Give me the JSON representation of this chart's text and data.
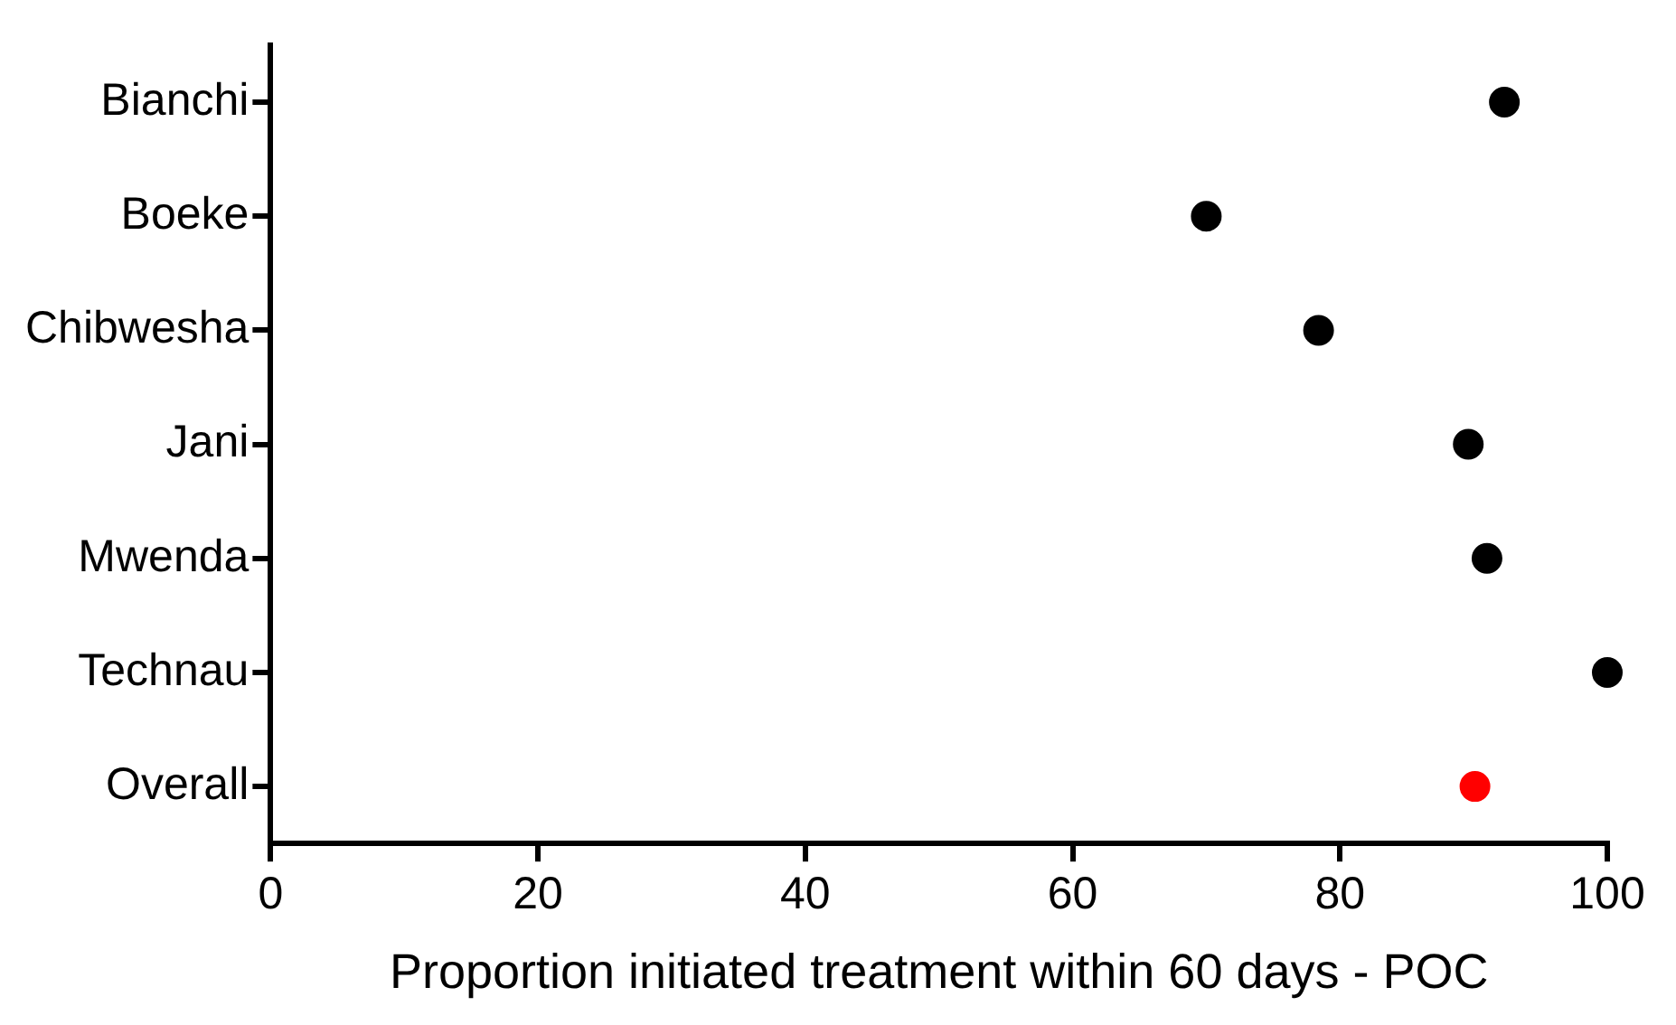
{
  "chart_data": {
    "type": "scatter",
    "orientation": "horizontal",
    "xlabel": "Proportion initiated treatment within 60 days - POC",
    "categories": [
      "Bianchi",
      "Boeke",
      "Chibwesha",
      "Jani",
      "Mwenda",
      "Technau",
      "Overall"
    ],
    "values": [
      92.3,
      70,
      78.4,
      89.6,
      91,
      100,
      90.1
    ],
    "colors": [
      "#000000",
      "#000000",
      "#000000",
      "#000000",
      "#000000",
      "#000000",
      "#ff0000"
    ],
    "xlim": [
      0,
      100
    ],
    "xticks": [
      0,
      20,
      40,
      60,
      80,
      100
    ],
    "marker": "circle",
    "grid": false,
    "legend": false
  }
}
